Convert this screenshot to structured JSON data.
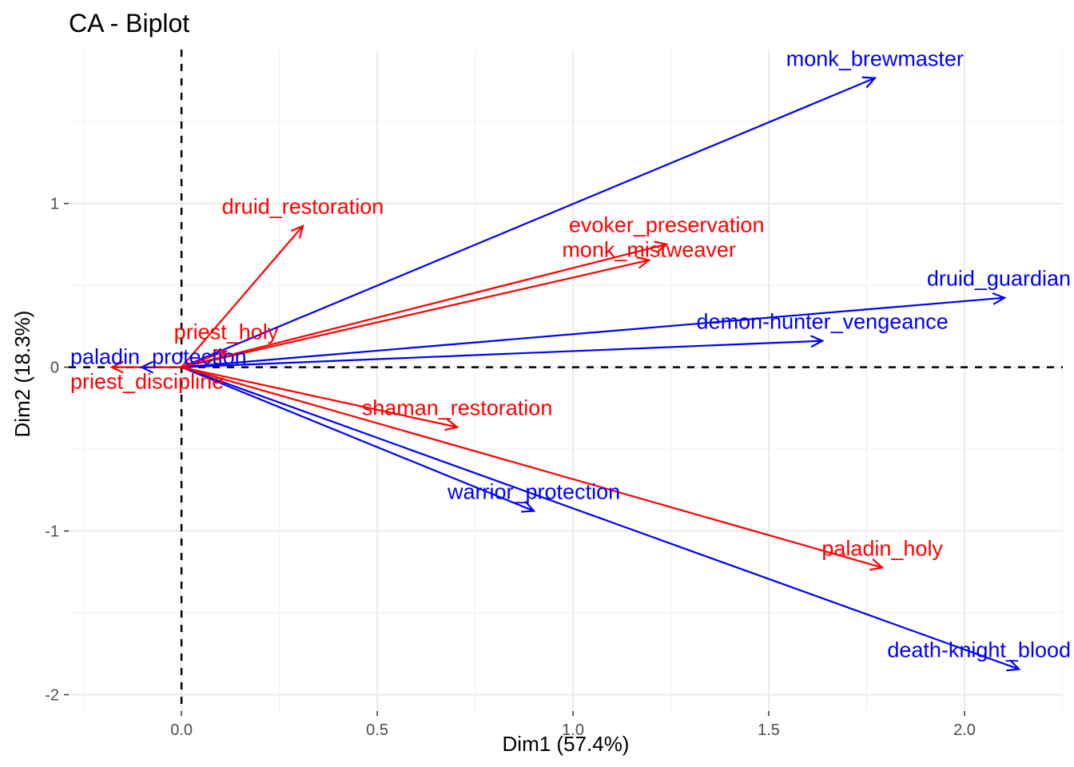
{
  "chart_data": {
    "type": "scatter",
    "title": "CA - Biplot",
    "xlabel": "Dim1 (57.4%)",
    "ylabel": "Dim2 (18.3%)",
    "xlim": [
      -0.288,
      2.251
    ],
    "ylim": [
      -2.1,
      1.94
    ],
    "x_ticks": [
      0.0,
      0.5,
      1.0,
      1.5,
      2.0
    ],
    "x_tick_labels": [
      "0.0",
      "0.5",
      "1.0",
      "1.5",
      "2.0"
    ],
    "y_ticks": [
      -2,
      -1,
      0,
      1
    ],
    "y_tick_labels": [
      "-2",
      "-1",
      "0",
      "1"
    ],
    "grid": true,
    "legend": "none",
    "series": [
      {
        "color": "#0000FF",
        "points": [
          {
            "label": "monk_brewmaster",
            "x": 1.771,
            "y": 1.766
          },
          {
            "label": "druid_guardian",
            "x": 2.102,
            "y": 0.424
          },
          {
            "label": "demon-hunter_vengeance",
            "x": 1.637,
            "y": 0.161
          },
          {
            "label": "paladin_protection",
            "x": -0.102,
            "y": 0.0
          },
          {
            "label": "warrior_protection",
            "x": 0.9,
            "y": -0.878
          },
          {
            "label": "death-knight_blood",
            "x": 2.139,
            "y": -1.844
          }
        ]
      },
      {
        "color": "#FF0000",
        "points": [
          {
            "label": "druid_restoration",
            "x": 0.31,
            "y": 0.863
          },
          {
            "label": "evoker_preservation",
            "x": 1.239,
            "y": 0.751
          },
          {
            "label": "monk_mistweaver",
            "x": 1.194,
            "y": 0.654
          },
          {
            "label": "priest_holy",
            "x": 0.114,
            "y": 0.098
          },
          {
            "label": "priest_discipline",
            "x": -0.178,
            "y": 0.0
          },
          {
            "label": "shaman_restoration",
            "x": 0.704,
            "y": -0.366
          },
          {
            "label": "paladin_holy",
            "x": 1.79,
            "y": -1.224
          }
        ]
      }
    ]
  }
}
